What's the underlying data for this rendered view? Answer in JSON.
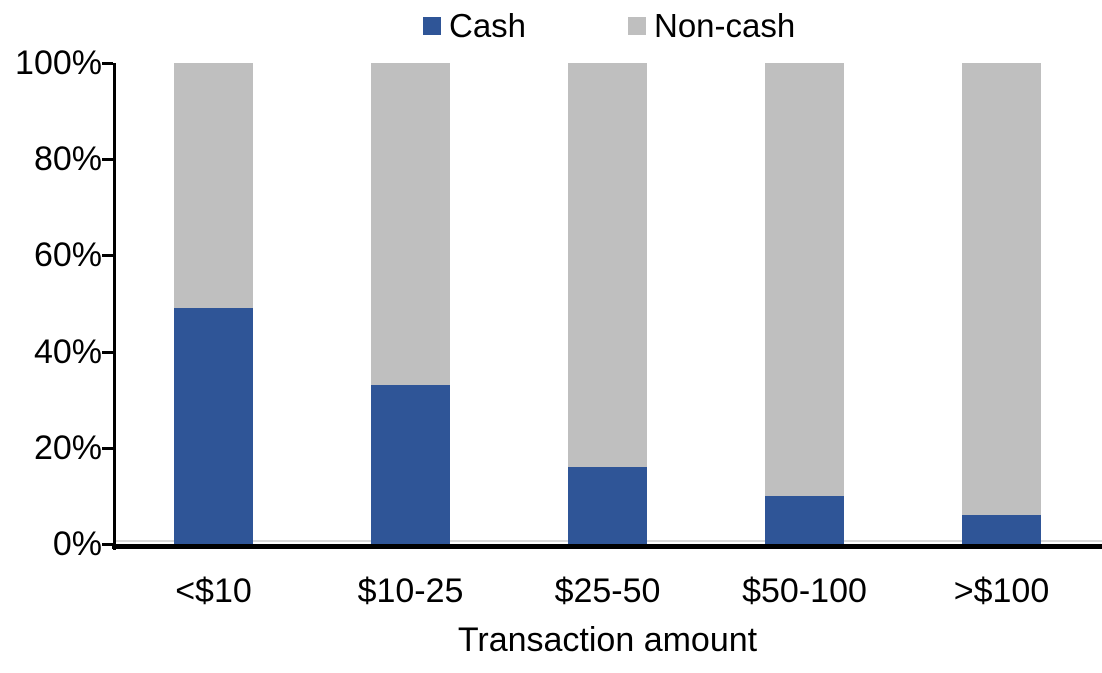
{
  "chart_data": {
    "type": "bar",
    "stacked": true,
    "title": "",
    "xlabel": "Transaction amount",
    "ylabel": "",
    "categories": [
      "<$10",
      "$10-25",
      "$25-50",
      "$50-100",
      ">$100"
    ],
    "series": [
      {
        "name": "Cash",
        "color": "#2F5597",
        "values": [
          49,
          33,
          16,
          10,
          6
        ]
      },
      {
        "name": "Non-cash",
        "color": "#BFBFBF",
        "values": [
          51,
          67,
          84,
          90,
          94
        ]
      }
    ],
    "ylim": [
      0,
      100
    ],
    "y_ticks": [
      "0%",
      "20%",
      "40%",
      "60%",
      "80%",
      "100%"
    ],
    "legend_position": "top",
    "grid": false
  },
  "colors": {
    "axis": "#000000",
    "baseline_minor": "#D9D9D9",
    "text": "#000000",
    "background": "#FFFFFF"
  }
}
